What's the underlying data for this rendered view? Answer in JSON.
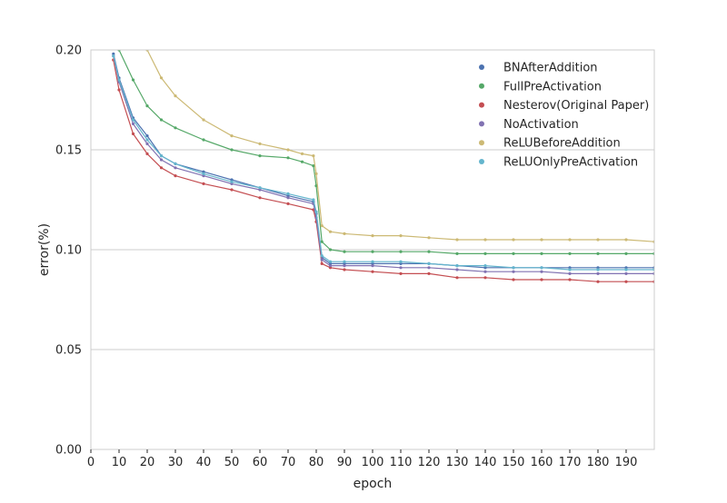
{
  "chart_data": {
    "type": "line",
    "title": "",
    "xlabel": "epoch",
    "ylabel": "error(%)",
    "xlim": [
      0,
      200
    ],
    "ylim": [
      0.0,
      0.2
    ],
    "xticks": [
      0,
      10,
      20,
      30,
      40,
      50,
      60,
      70,
      80,
      90,
      100,
      110,
      120,
      130,
      140,
      150,
      160,
      170,
      180,
      190
    ],
    "yticks": [
      0.0,
      0.05,
      0.1,
      0.15,
      0.2
    ],
    "xtick_labels": [
      "0",
      "10",
      "20",
      "30",
      "40",
      "50",
      "60",
      "70",
      "80",
      "90",
      "100",
      "110",
      "120",
      "130",
      "140",
      "150",
      "160",
      "170",
      "180",
      "190"
    ],
    "ytick_labels": [
      "0.00",
      "0.05",
      "0.10",
      "0.15",
      "0.20"
    ],
    "grid": "horizontal",
    "legend_position": "top-right",
    "series": [
      {
        "name": "BNAfterAddition",
        "color": "#4C72B0",
        "x": [
          8,
          10,
          15,
          20,
          25,
          30,
          40,
          50,
          60,
          70,
          79,
          80,
          82,
          85,
          90,
          100,
          110,
          120,
          130,
          140,
          150,
          160,
          170,
          180,
          190,
          200
        ],
        "values": [
          0.198,
          0.186,
          0.166,
          0.157,
          0.147,
          0.143,
          0.139,
          0.135,
          0.131,
          0.127,
          0.124,
          0.118,
          0.096,
          0.093,
          0.093,
          0.093,
          0.093,
          0.093,
          0.092,
          0.091,
          0.091,
          0.091,
          0.091,
          0.091,
          0.091,
          0.091
        ]
      },
      {
        "name": "FullPreActivation",
        "color": "#55A868",
        "x": [
          10,
          15,
          20,
          25,
          30,
          40,
          50,
          60,
          70,
          75,
          79,
          80,
          82,
          85,
          90,
          100,
          110,
          120,
          130,
          140,
          150,
          160,
          170,
          180,
          190,
          200
        ],
        "values": [
          0.2,
          0.185,
          0.172,
          0.165,
          0.161,
          0.155,
          0.15,
          0.147,
          0.146,
          0.144,
          0.142,
          0.132,
          0.104,
          0.1,
          0.099,
          0.099,
          0.099,
          0.099,
          0.098,
          0.098,
          0.098,
          0.098,
          0.098,
          0.098,
          0.098,
          0.098
        ]
      },
      {
        "name": "Nesterov(Original Paper)",
        "color": "#C44E52",
        "x": [
          8,
          10,
          15,
          20,
          25,
          30,
          40,
          50,
          60,
          70,
          79,
          80,
          82,
          85,
          90,
          100,
          110,
          120,
          130,
          140,
          150,
          160,
          170,
          180,
          190,
          200
        ],
        "values": [
          0.195,
          0.18,
          0.158,
          0.148,
          0.141,
          0.137,
          0.133,
          0.13,
          0.126,
          0.123,
          0.12,
          0.114,
          0.093,
          0.091,
          0.09,
          0.089,
          0.088,
          0.088,
          0.086,
          0.086,
          0.085,
          0.085,
          0.085,
          0.084,
          0.084,
          0.084
        ]
      },
      {
        "name": "NoActivation",
        "color": "#8172B2",
        "x": [
          8,
          10,
          15,
          20,
          25,
          30,
          40,
          50,
          60,
          70,
          79,
          80,
          82,
          85,
          90,
          100,
          110,
          120,
          130,
          140,
          150,
          160,
          170,
          180,
          190,
          200
        ],
        "values": [
          0.197,
          0.184,
          0.163,
          0.153,
          0.145,
          0.141,
          0.137,
          0.133,
          0.13,
          0.126,
          0.123,
          0.116,
          0.095,
          0.092,
          0.092,
          0.092,
          0.091,
          0.091,
          0.09,
          0.089,
          0.089,
          0.089,
          0.088,
          0.088,
          0.088,
          0.088
        ]
      },
      {
        "name": "ReLUBeforeAddition",
        "color": "#CCB974",
        "x": [
          15,
          20,
          25,
          30,
          40,
          50,
          60,
          70,
          75,
          79,
          80,
          82,
          85,
          90,
          100,
          110,
          120,
          130,
          140,
          150,
          160,
          170,
          180,
          190,
          200
        ],
        "values": [
          0.205,
          0.2,
          0.186,
          0.177,
          0.165,
          0.157,
          0.153,
          0.15,
          0.148,
          0.147,
          0.138,
          0.112,
          0.109,
          0.108,
          0.107,
          0.107,
          0.106,
          0.105,
          0.105,
          0.105,
          0.105,
          0.105,
          0.105,
          0.105,
          0.104
        ]
      },
      {
        "name": "ReLUOnlyPreActivation",
        "color": "#64B5CD",
        "x": [
          8,
          10,
          15,
          20,
          25,
          30,
          40,
          50,
          60,
          70,
          79,
          80,
          82,
          85,
          90,
          100,
          110,
          120,
          130,
          140,
          150,
          160,
          170,
          180,
          190,
          200
        ],
        "values": [
          0.197,
          0.185,
          0.165,
          0.155,
          0.147,
          0.143,
          0.138,
          0.134,
          0.131,
          0.128,
          0.125,
          0.119,
          0.097,
          0.094,
          0.094,
          0.094,
          0.094,
          0.093,
          0.092,
          0.092,
          0.091,
          0.091,
          0.09,
          0.09,
          0.09,
          0.09
        ]
      }
    ]
  }
}
